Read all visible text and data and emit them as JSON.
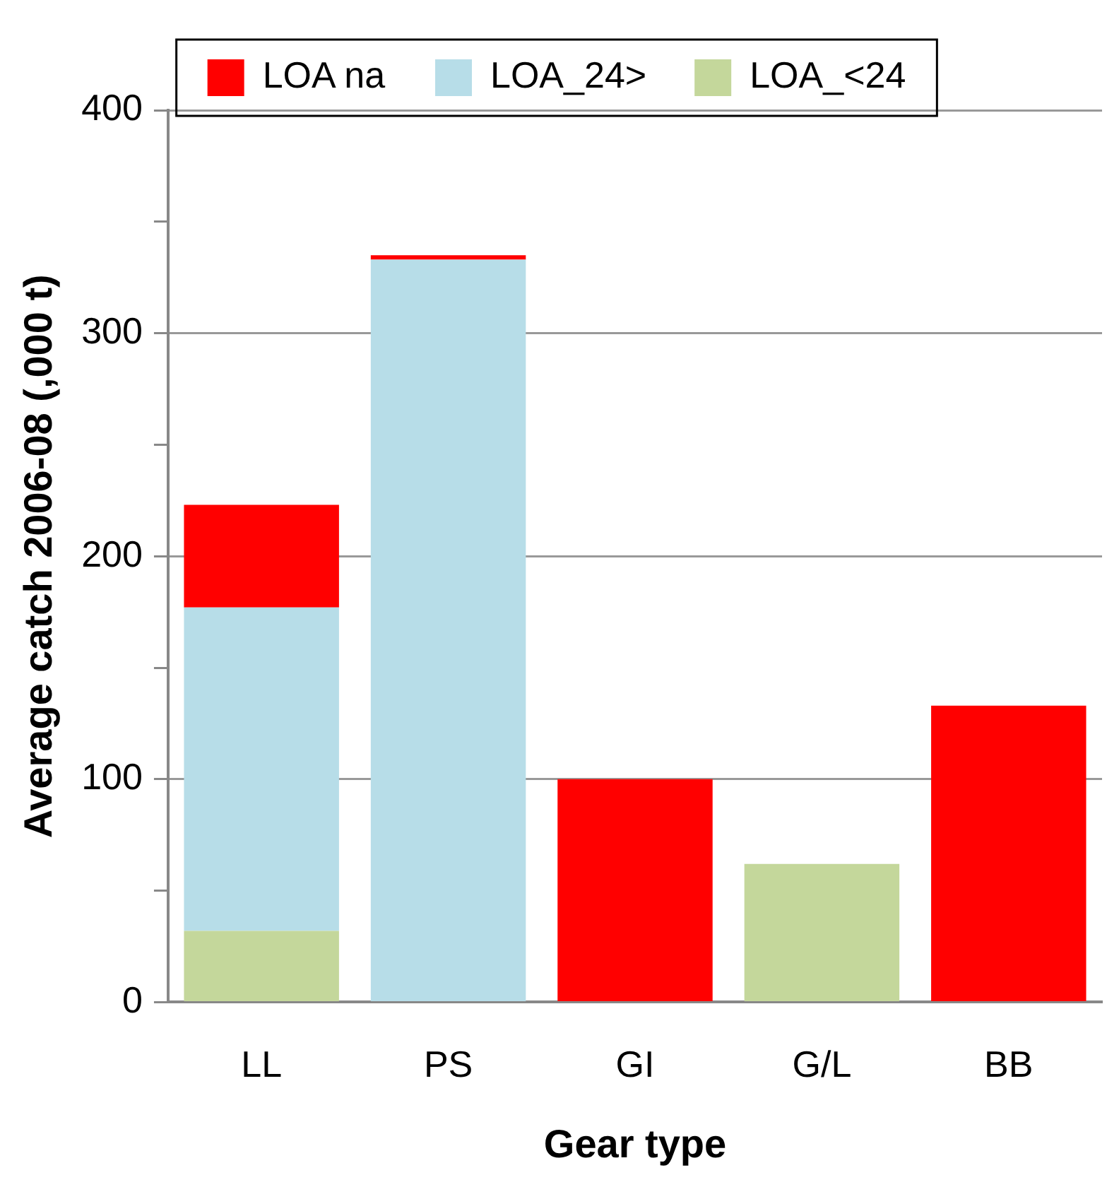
{
  "chart_data": {
    "type": "bar",
    "stacked": true,
    "xlabel": "Gear type",
    "ylabel": "Average catch 2006-08 (,000 t)",
    "categories": [
      "LL",
      "PS",
      "GI",
      "G/L",
      "BB"
    ],
    "series": [
      {
        "name": "LOA_<24",
        "color": "#c4d79b",
        "values": [
          32,
          null,
          null,
          62,
          null
        ]
      },
      {
        "name": "LOA_24>",
        "color": "#b7dde8",
        "values": [
          145,
          333,
          null,
          null,
          null
        ]
      },
      {
        "name": "LOA na",
        "color": "#ff0000",
        "values": [
          46,
          2,
          100,
          null,
          133
        ]
      }
    ],
    "ylim": [
      0,
      400
    ],
    "yticks": [
      0,
      {
        "value": 50,
        "label": null
      },
      100,
      {
        "value": 150,
        "label": null
      },
      200,
      {
        "value": 250,
        "label": null
      },
      300,
      {
        "value": 350,
        "label": null
      },
      400
    ],
    "grid": "y",
    "legend": "top"
  }
}
